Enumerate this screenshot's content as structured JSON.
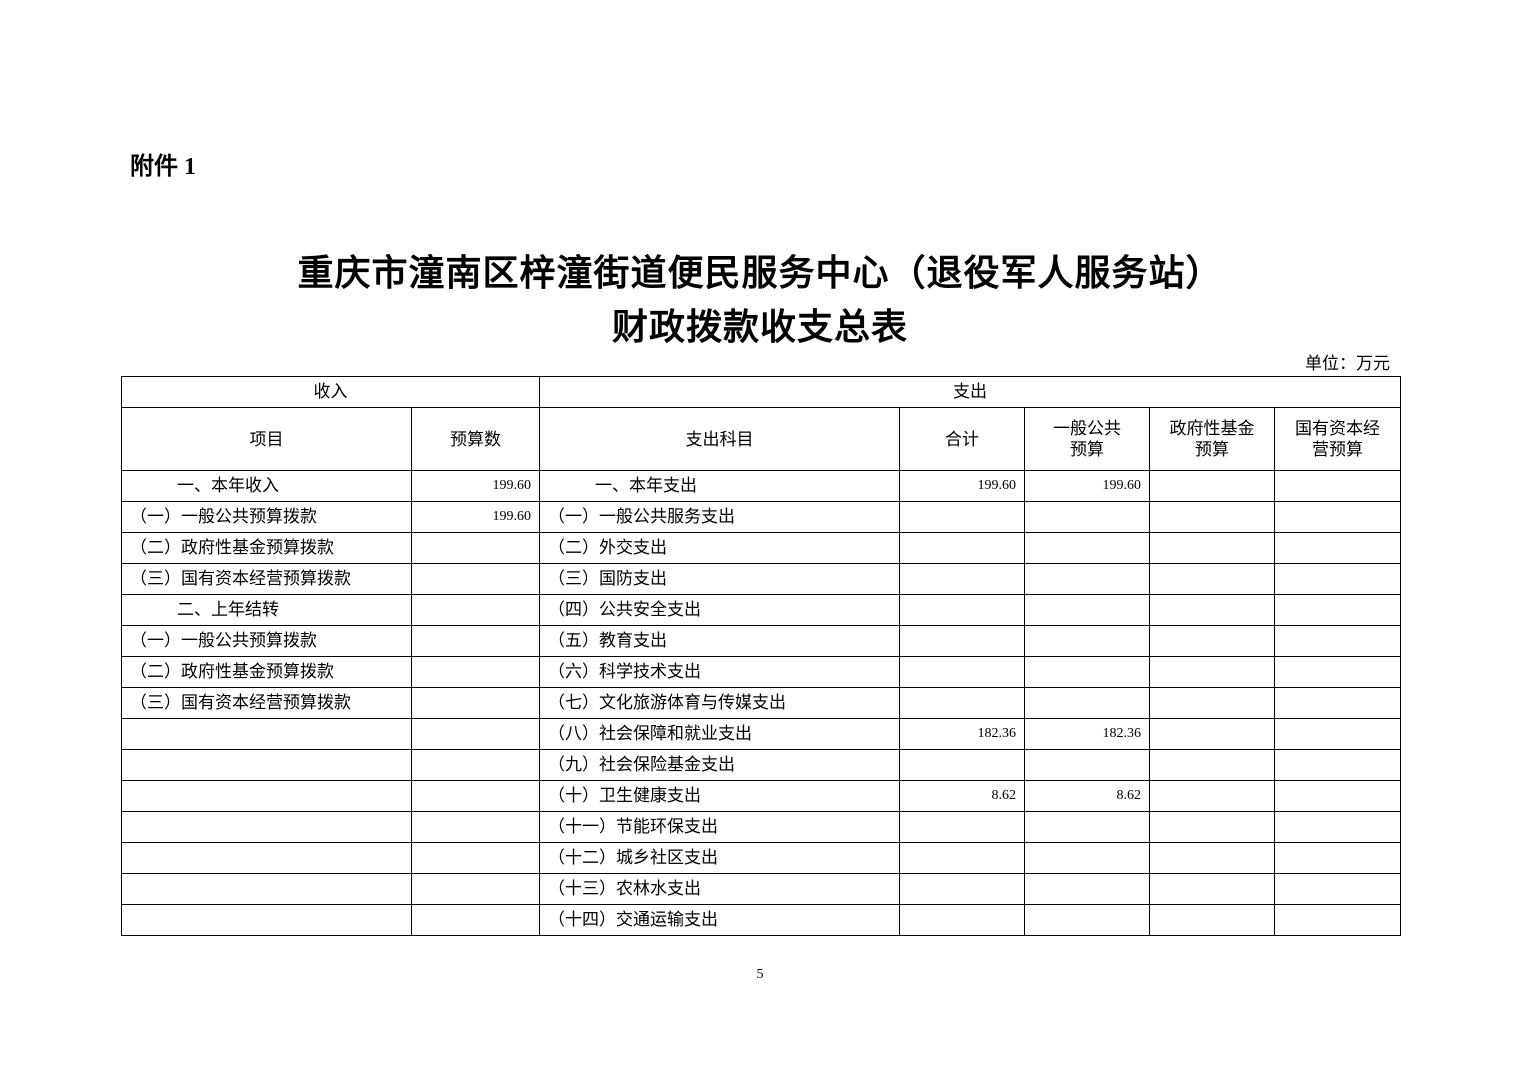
{
  "attachment_label": "附件 1",
  "title_line1": "重庆市潼南区梓潼街道便民服务中心（退役军人服务站）",
  "title_line2": "财政拨款收支总表",
  "unit": "单位：万元",
  "header": {
    "income": "收入",
    "expense": "支出",
    "item": "项目",
    "budget": "预算数",
    "expense_subject": "支出科目",
    "total": "合计",
    "general_public_budget": "一般公共预算",
    "gov_fund_budget": "政府性基金预算",
    "state_capital_budget": "国有资本经营预算"
  },
  "rows": [
    {
      "income_item": "一、本年收入",
      "income_budget": "199.60",
      "expense_item": "一、本年支出",
      "total": "199.60",
      "general": "199.60",
      "fund": "",
      "capital": ""
    },
    {
      "income_item": "（一）一般公共预算拨款",
      "income_budget": "199.60",
      "expense_item": "（一）一般公共服务支出",
      "total": "",
      "general": "",
      "fund": "",
      "capital": ""
    },
    {
      "income_item": "（二）政府性基金预算拨款",
      "income_budget": "",
      "expense_item": "（二）外交支出",
      "total": "",
      "general": "",
      "fund": "",
      "capital": ""
    },
    {
      "income_item": "（三）国有资本经营预算拨款",
      "income_budget": "",
      "expense_item": "（三）国防支出",
      "total": "",
      "general": "",
      "fund": "",
      "capital": ""
    },
    {
      "income_item": "二、上年结转",
      "income_budget": "",
      "expense_item": "（四）公共安全支出",
      "total": "",
      "general": "",
      "fund": "",
      "capital": ""
    },
    {
      "income_item": "（一）一般公共预算拨款",
      "income_budget": "",
      "expense_item": "（五）教育支出",
      "total": "",
      "general": "",
      "fund": "",
      "capital": ""
    },
    {
      "income_item": "（二）政府性基金预算拨款",
      "income_budget": "",
      "expense_item": "（六）科学技术支出",
      "total": "",
      "general": "",
      "fund": "",
      "capital": ""
    },
    {
      "income_item": "（三）国有资本经营预算拨款",
      "income_budget": "",
      "expense_item": "（七）文化旅游体育与传媒支出",
      "total": "",
      "general": "",
      "fund": "",
      "capital": ""
    },
    {
      "income_item": "",
      "income_budget": "",
      "expense_item": "（八）社会保障和就业支出",
      "total": "182.36",
      "general": "182.36",
      "fund": "",
      "capital": ""
    },
    {
      "income_item": "",
      "income_budget": "",
      "expense_item": "（九）社会保险基金支出",
      "total": "",
      "general": "",
      "fund": "",
      "capital": ""
    },
    {
      "income_item": "",
      "income_budget": "",
      "expense_item": "（十）卫生健康支出",
      "total": "8.62",
      "general": "8.62",
      "fund": "",
      "capital": ""
    },
    {
      "income_item": "",
      "income_budget": "",
      "expense_item": "（十一）节能环保支出",
      "total": "",
      "general": "",
      "fund": "",
      "capital": ""
    },
    {
      "income_item": "",
      "income_budget": "",
      "expense_item": "（十二）城乡社区支出",
      "total": "",
      "general": "",
      "fund": "",
      "capital": ""
    },
    {
      "income_item": "",
      "income_budget": "",
      "expense_item": "（十三）农林水支出",
      "total": "",
      "general": "",
      "fund": "",
      "capital": ""
    },
    {
      "income_item": "",
      "income_budget": "",
      "expense_item": "（十四）交通运输支出",
      "total": "",
      "general": "",
      "fund": "",
      "capital": ""
    }
  ],
  "page_number": "5"
}
